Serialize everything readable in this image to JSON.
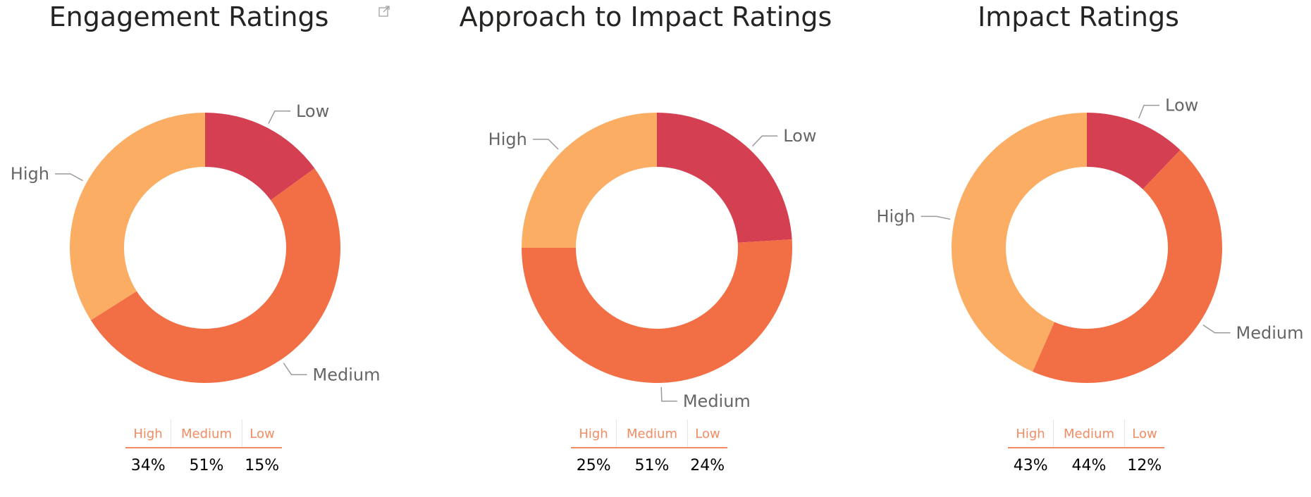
{
  "chart_data": [
    {
      "type": "pie",
      "title": "Engagement Ratings",
      "categories": [
        "Low",
        "Medium",
        "High"
      ],
      "values": [
        15,
        51,
        34
      ],
      "colors": [
        "#d43f52",
        "#f26f45",
        "#fcad64"
      ],
      "table": {
        "headers": [
          "High",
          "Medium",
          "Low"
        ],
        "values": [
          "34%",
          "51%",
          "15%"
        ]
      }
    },
    {
      "type": "pie",
      "title": "Approach to Impact Ratings",
      "categories": [
        "Low",
        "Medium",
        "High"
      ],
      "values": [
        24,
        51,
        25
      ],
      "colors": [
        "#d43f52",
        "#f26f45",
        "#fcad64"
      ],
      "table": {
        "headers": [
          "High",
          "Medium",
          "Low"
        ],
        "values": [
          "25%",
          "51%",
          "24%"
        ]
      }
    },
    {
      "type": "pie",
      "title": "Impact Ratings",
      "categories": [
        "Low",
        "Medium",
        "High"
      ],
      "values": [
        12,
        44,
        43
      ],
      "colors": [
        "#d43f52",
        "#f26f45",
        "#fcad64"
      ],
      "table": {
        "headers": [
          "High",
          "Medium",
          "Low"
        ],
        "values": [
          "43%",
          "44%",
          "12%"
        ]
      }
    }
  ],
  "icons": {
    "focus_mode": "focus-mode-icon"
  }
}
